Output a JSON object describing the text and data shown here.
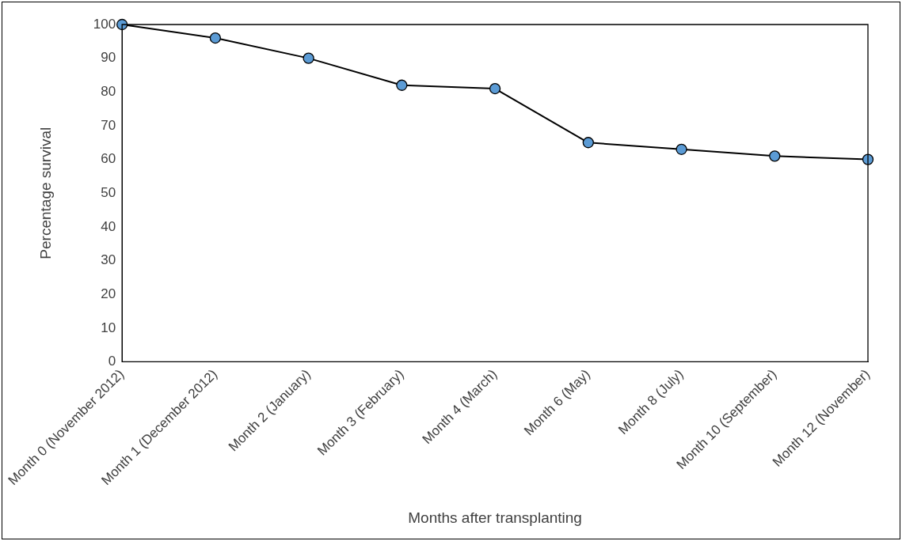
{
  "chart_data": {
    "type": "line",
    "xlabel": "Months after transplanting",
    "ylabel": "Percentage survival",
    "categories": [
      "Month 0 (November 2012)",
      "Month 1 (December 2012)",
      "Month 2 (January)",
      "Month 3 (February)",
      "Month 4 (March)",
      "Month 6 (May)",
      "Month 8 (July)",
      "Month 10 (September)",
      "Month 12 (November)"
    ],
    "series": [
      {
        "color": "#5b9bd5",
        "values": [
          100,
          96,
          90,
          82,
          81,
          65,
          63,
          61,
          60
        ]
      }
    ],
    "ylim": [
      0,
      100
    ],
    "yticks": [
      0,
      10,
      20,
      30,
      40,
      50,
      60,
      70,
      80,
      90,
      100
    ],
    "grid": false,
    "legend": false,
    "marker": "circle",
    "line_style": "solid"
  }
}
